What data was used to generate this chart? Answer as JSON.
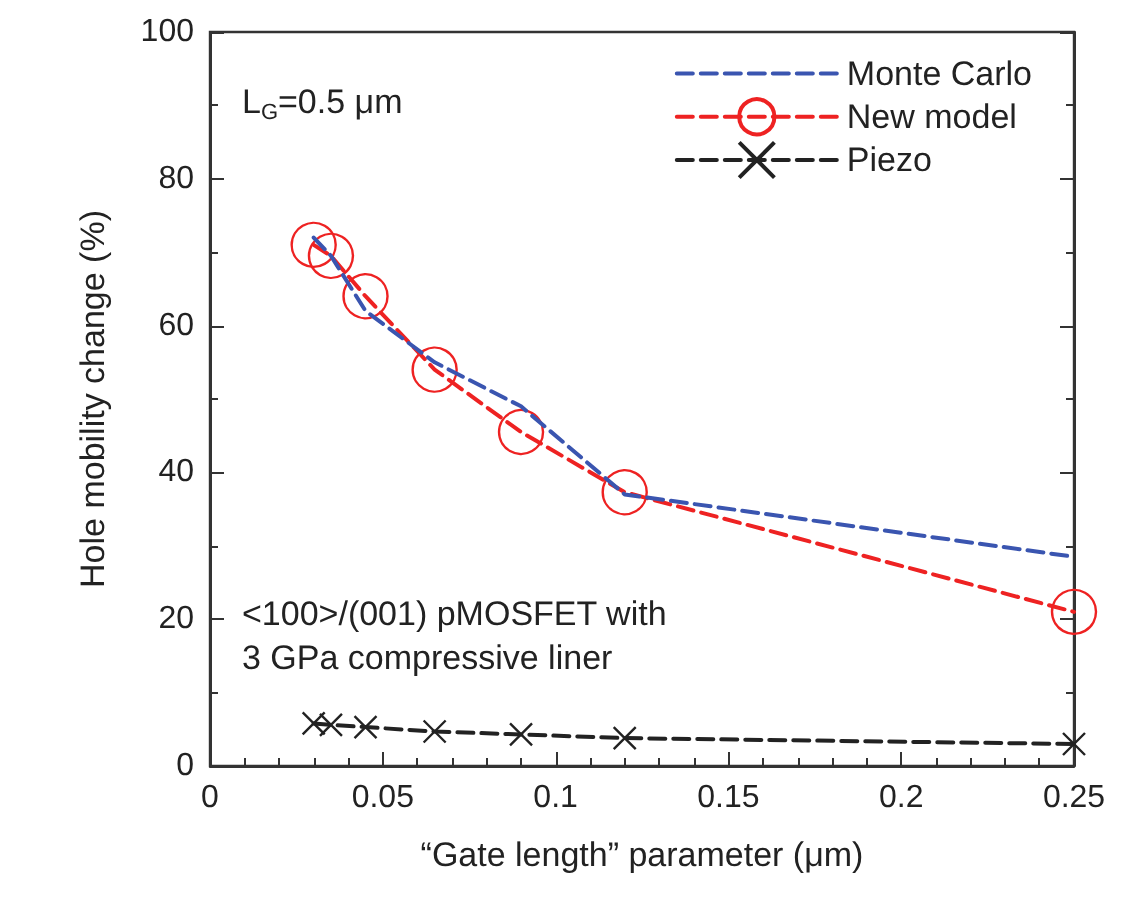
{
  "chart_data": {
    "type": "line",
    "xlabel": "“Gate length” parameter (μm)",
    "ylabel": "Hole mobility change (%)",
    "x": [
      0.03,
      0.035,
      0.045,
      0.065,
      0.09,
      0.12,
      0.25
    ],
    "series": [
      {
        "name": "Monte Carlo",
        "color": "#3a55b0",
        "marker": "none",
        "values": [
          72,
          69.5,
          62,
          55,
          49,
          37,
          28.5
        ]
      },
      {
        "name": "New model",
        "color": "#ee2222",
        "marker": "circle",
        "values": [
          71,
          69.5,
          64,
          54,
          45.5,
          37.3,
          21
        ]
      },
      {
        "name": "Piezo",
        "color": "#222222",
        "marker": "cross",
        "values": [
          5.8,
          5.6,
          5.3,
          4.7,
          4.3,
          3.8,
          3.0
        ]
      }
    ],
    "line_style": "dashed",
    "legend": "top right",
    "grid": false,
    "xlim": [
      0,
      0.25
    ],
    "xticks": [
      0,
      0.05,
      0.1,
      0.15,
      0.2,
      0.25
    ],
    "ylim": [
      0,
      100
    ],
    "yticks": [
      0,
      20,
      40,
      60,
      80,
      100
    ],
    "annotations": [
      "L$_{G}$=0.5 μm",
      "<100>/(001) pMOSFET with\n3 GPa compressive liner"
    ]
  }
}
